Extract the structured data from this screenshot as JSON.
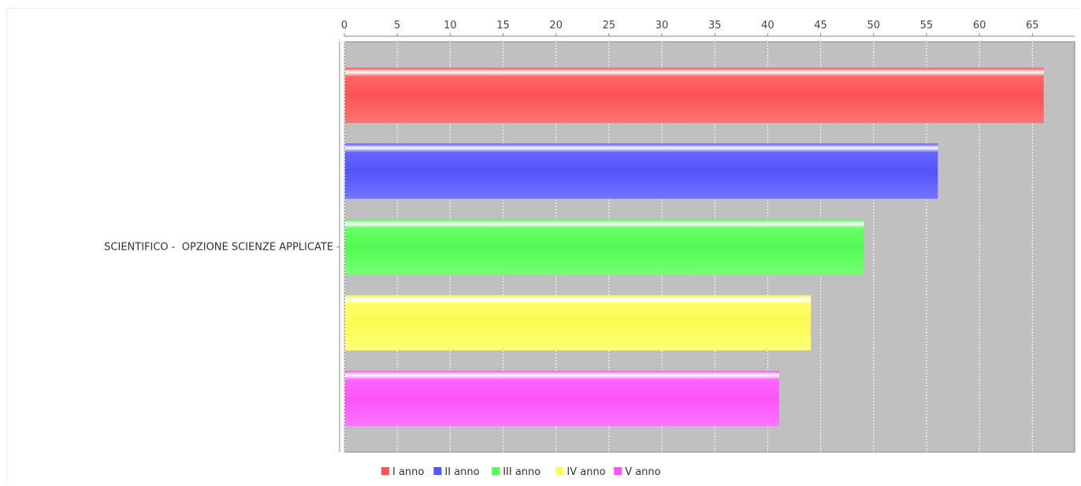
{
  "chart_data": {
    "type": "bar",
    "orientation": "horizontal",
    "categories": [
      "SCIENTIFICO -  OPZIONE SCIENZE APPLICATE"
    ],
    "series": [
      {
        "name": "I anno",
        "values": [
          66
        ],
        "color": "#ff5555"
      },
      {
        "name": "II anno",
        "values": [
          56
        ],
        "color": "#5555ff"
      },
      {
        "name": "III anno",
        "values": [
          49
        ],
        "color": "#55ff55"
      },
      {
        "name": "IV anno",
        "values": [
          44
        ],
        "color": "#ffff55"
      },
      {
        "name": "V anno",
        "values": [
          41
        ],
        "color": "#ff55ff"
      }
    ],
    "xlim": [
      0,
      69
    ],
    "x_ticks": [
      0,
      5,
      10,
      15,
      20,
      25,
      30,
      35,
      40,
      45,
      50,
      55,
      60,
      65
    ],
    "x_axis_position": "top",
    "grid": true,
    "legend_position": "bottom",
    "background_color": "#c0c0c0"
  }
}
